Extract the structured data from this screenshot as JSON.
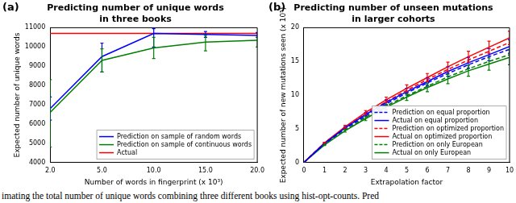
{
  "chart_data": [
    {
      "type": "line",
      "annotations": [
        "(a)"
      ],
      "title": [
        "Predicting number of unique words",
        "in three books"
      ],
      "x_label": "Number of words in fingerprint (x 10³)",
      "y_label": "Expected number of unique words",
      "categories": [
        "2.0",
        "5.0",
        "10.0",
        "15.0",
        "20.0"
      ],
      "ylim": [
        4000,
        11000
      ],
      "yticks": [
        4000,
        5000,
        6000,
        7000,
        8000,
        9000,
        10000,
        11000
      ],
      "grid": false,
      "legend": "lower right",
      "series": [
        {
          "name": "Prediction on sample of random words",
          "color": "#0000ff",
          "line_style": "solid",
          "values": [
            6800,
            9500,
            10700,
            10650,
            10600
          ],
          "error_bars": [
            [
              6200,
              7400
            ],
            [
              8700,
              10200
            ],
            [
              10000,
              10950
            ],
            [
              10500,
              10800
            ],
            [
              10500,
              10750
            ]
          ]
        },
        {
          "name": "Prediction on sample of continuous words",
          "color": "#008000",
          "line_style": "solid",
          "values": [
            6600,
            9300,
            9950,
            10250,
            10350
          ],
          "error_bars": [
            [
              4800,
              8300
            ],
            [
              8700,
              9900
            ],
            [
              9400,
              10500
            ],
            [
              9800,
              10600
            ],
            [
              10000,
              10500
            ]
          ]
        },
        {
          "name": "Actual",
          "color": "#ff0000",
          "line_style": "solid",
          "values": [
            10700,
            10700,
            10700,
            10700,
            10700
          ]
        }
      ]
    },
    {
      "type": "line",
      "annotations": [
        "(b)"
      ],
      "title": [
        "Predicting number of unseen mutations",
        "in larger cohorts"
      ],
      "x_label": "Extrapolation factor",
      "y_label": "Expected number of new mutations seen (x 10⁵)",
      "x": [
        0,
        1,
        2,
        3,
        4,
        5,
        6,
        7,
        8,
        9,
        10
      ],
      "xlim": [
        0,
        10
      ],
      "xticks": [
        0,
        1,
        2,
        3,
        4,
        5,
        6,
        7,
        8,
        9,
        10
      ],
      "ylim": [
        0,
        20
      ],
      "yticks": [
        0,
        5,
        10,
        15,
        20
      ],
      "grid": false,
      "legend": "lower right",
      "series": [
        {
          "name": "Prediction on equal proportion",
          "color": "#0000ff",
          "line_style": "dashed",
          "values": [
            0,
            2.8,
            5.0,
            6.9,
            8.7,
            10.3,
            11.8,
            13.2,
            14.5,
            15.7,
            16.8
          ]
        },
        {
          "name": "Actual on equal proportion",
          "color": "#0000ff",
          "line_style": "solid",
          "values": [
            0,
            2.8,
            5.1,
            7.1,
            8.9,
            10.5,
            12.0,
            13.5,
            14.8,
            16.0,
            17.2
          ],
          "error_bars": [
            null,
            [
              2.7,
              2.9
            ],
            [
              4.9,
              5.3
            ],
            [
              6.8,
              7.4
            ],
            [
              8.5,
              9.3
            ],
            [
              10.0,
              11.0
            ],
            [
              11.4,
              12.6
            ],
            [
              12.8,
              14.2
            ],
            [
              14.0,
              15.6
            ],
            [
              15.1,
              16.9
            ],
            [
              16.2,
              18.2
            ]
          ]
        },
        {
          "name": "Prediction on optimized proportion",
          "color": "#ff0000",
          "line_style": "dashed",
          "values": [
            0,
            2.9,
            5.2,
            7.2,
            9.0,
            10.7,
            12.3,
            13.8,
            15.2,
            16.5,
            17.8
          ]
        },
        {
          "name": "Actual on optimized proportion",
          "color": "#ff0000",
          "line_style": "solid",
          "values": [
            0,
            2.9,
            5.3,
            7.4,
            9.3,
            11.0,
            12.6,
            14.2,
            15.7,
            17.1,
            18.5
          ],
          "error_bars": [
            null,
            [
              2.8,
              3.0
            ],
            [
              5.1,
              5.5
            ],
            [
              7.1,
              7.7
            ],
            [
              8.9,
              9.7
            ],
            [
              10.5,
              11.5
            ],
            [
              12.0,
              13.2
            ],
            [
              13.5,
              14.9
            ],
            [
              14.9,
              16.5
            ],
            [
              16.2,
              18.0
            ],
            [
              17.5,
              19.5
            ]
          ]
        },
        {
          "name": "Prediction on only European",
          "color": "#008000",
          "line_style": "dashed",
          "values": [
            0,
            2.7,
            4.8,
            6.7,
            8.4,
            9.9,
            11.3,
            12.7,
            13.9,
            15.0,
            16.0
          ]
        },
        {
          "name": "Actual on only European",
          "color": "#008000",
          "line_style": "solid",
          "values": [
            0,
            2.6,
            4.7,
            6.5,
            8.2,
            9.7,
            11.1,
            12.4,
            13.6,
            14.6,
            15.6
          ],
          "error_bars": [
            null,
            [
              2.5,
              2.7
            ],
            [
              4.5,
              4.9
            ],
            [
              6.2,
              6.8
            ],
            [
              7.8,
              8.6
            ],
            [
              9.2,
              10.2
            ],
            [
              10.5,
              11.7
            ],
            [
              11.7,
              13.1
            ],
            [
              12.8,
              14.4
            ],
            [
              13.7,
              15.5
            ],
            [
              14.5,
              16.7
            ]
          ]
        }
      ]
    }
  ],
  "caption": "imating the total number of unique words combining three different books using hist-opt-counts. Pred"
}
